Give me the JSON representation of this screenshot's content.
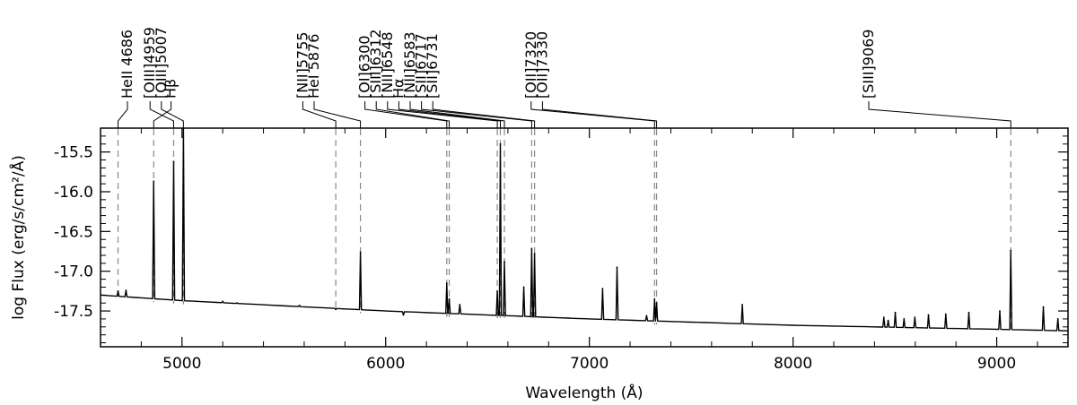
{
  "chart_data": {
    "type": "line",
    "title": "",
    "xlabel": "Wavelength (Å)",
    "ylabel": "log Flux (erg/s/cm²/Å)",
    "xlim": [
      4600,
      9350
    ],
    "ylim": [
      -17.95,
      -15.2
    ],
    "x_ticks": [
      5000,
      6000,
      7000,
      8000,
      9000
    ],
    "x_tick_labels": [
      "5000",
      "6000",
      "7000",
      "8000",
      "9000"
    ],
    "y_ticks": [
      -15.5,
      -16.0,
      -16.5,
      -17.0,
      -17.5
    ],
    "y_tick_labels": [
      "-15.5",
      "-16.0",
      "-16.5",
      "-17.0",
      "-17.5"
    ],
    "grid": false,
    "legend": "none",
    "line_color": "#000000",
    "marker_color": "#888888",
    "continuum": [
      [
        4600,
        -17.3
      ],
      [
        5000,
        -17.37
      ],
      [
        6000,
        -17.5
      ],
      [
        7000,
        -17.6
      ],
      [
        8000,
        -17.68
      ],
      [
        9000,
        -17.73
      ],
      [
        9350,
        -17.75
      ]
    ],
    "features": [
      {
        "x": 4686,
        "y": -17.25
      },
      {
        "x": 4725,
        "y": -17.24
      },
      {
        "x": 4861,
        "y": -15.87
      },
      {
        "x": 4959,
        "y": -15.62
      },
      {
        "x": 5007,
        "y": -15.2
      },
      {
        "x": 5200,
        "y": -17.38
      },
      {
        "x": 5270,
        "y": -17.4
      },
      {
        "x": 5577,
        "y": -17.43
      },
      {
        "x": 5755,
        "y": -17.48
      },
      {
        "x": 5876,
        "y": -16.76
      },
      {
        "x": 6087,
        "y": -17.55
      },
      {
        "x": 6300,
        "y": -17.15
      },
      {
        "x": 6312,
        "y": -17.35
      },
      {
        "x": 6364,
        "y": -17.42
      },
      {
        "x": 6548,
        "y": -17.25
      },
      {
        "x": 6563,
        "y": -15.4
      },
      {
        "x": 6583,
        "y": -16.88
      },
      {
        "x": 6678,
        "y": -17.2
      },
      {
        "x": 6717,
        "y": -16.72
      },
      {
        "x": 6731,
        "y": -16.78
      },
      {
        "x": 7065,
        "y": -17.22
      },
      {
        "x": 7136,
        "y": -16.95
      },
      {
        "x": 7281,
        "y": -17.56
      },
      {
        "x": 7320,
        "y": -17.35
      },
      {
        "x": 7330,
        "y": -17.4
      },
      {
        "x": 7751,
        "y": -17.42
      },
      {
        "x": 8446,
        "y": -17.58
      },
      {
        "x": 8467,
        "y": -17.62
      },
      {
        "x": 8502,
        "y": -17.52
      },
      {
        "x": 8545,
        "y": -17.6
      },
      {
        "x": 8598,
        "y": -17.58
      },
      {
        "x": 8665,
        "y": -17.55
      },
      {
        "x": 8750,
        "y": -17.54
      },
      {
        "x": 8863,
        "y": -17.52
      },
      {
        "x": 9015,
        "y": -17.5
      },
      {
        "x": 9069,
        "y": -16.74
      },
      {
        "x": 9229,
        "y": -17.45
      },
      {
        "x": 9300,
        "y": -17.6
      }
    ],
    "annotations": [
      {
        "label": "HeII 4686",
        "line_x": 4686,
        "slot": 0
      },
      {
        "label": "Hβ",
        "line_x": 4861,
        "slot": 1
      },
      {
        "label": "[OIII]4959",
        "line_x": 4959,
        "slot": 2
      },
      {
        "label": "[OIII]5007",
        "line_x": 5007,
        "slot": 3
      },
      {
        "label": "[NII]5755",
        "line_x": 5755,
        "slot": 4
      },
      {
        "label": "HeI 5876",
        "line_x": 5876,
        "slot": 5
      },
      {
        "label": "[OI]6300",
        "line_x": 6300,
        "slot": 6
      },
      {
        "label": "[SIII]6312",
        "line_x": 6312,
        "slot": 7
      },
      {
        "label": "[NII]6548",
        "line_x": 6548,
        "slot": 8
      },
      {
        "label": "Hα",
        "line_x": 6563,
        "slot": 9
      },
      {
        "label": "[NII]6583",
        "line_x": 6583,
        "slot": 10
      },
      {
        "label": "[SII]6717",
        "line_x": 6717,
        "slot": 11
      },
      {
        "label": "[SII]6731",
        "line_x": 6731,
        "slot": 12
      },
      {
        "label": "[OII]7320",
        "line_x": 7320,
        "slot": 13
      },
      {
        "label": "[OII]7330",
        "line_x": 7330,
        "slot": 14
      },
      {
        "label": "[SIII]9069",
        "line_x": 9069,
        "slot": 15
      }
    ]
  }
}
